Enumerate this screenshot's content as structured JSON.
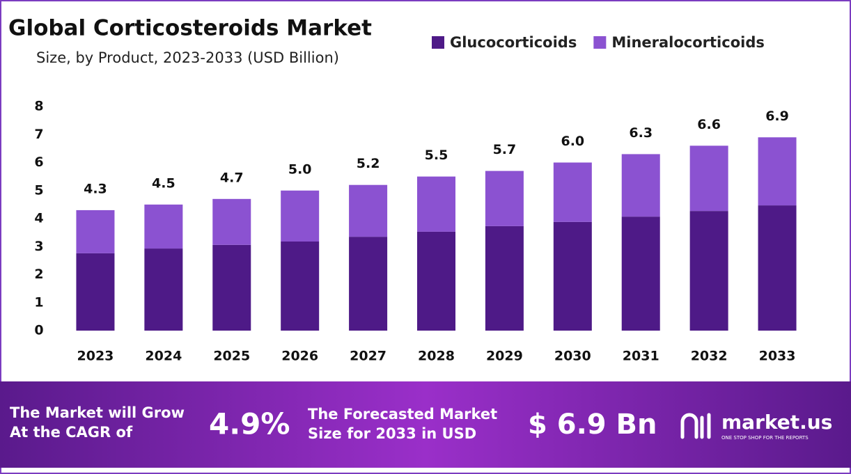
{
  "chart_data": {
    "type": "stacked_bar",
    "title": "Global Corticosteroids Market",
    "subtitle": "Size, by Product, 2023-2033 (USD Billion)",
    "categories": [
      "2023",
      "2024",
      "2025",
      "2026",
      "2027",
      "2028",
      "2029",
      "2030",
      "2031",
      "2032",
      "2033"
    ],
    "series": [
      {
        "name": "Glucocorticoids",
        "color": "#4e1a87",
        "values": [
          2.76,
          2.93,
          3.06,
          3.18,
          3.35,
          3.53,
          3.73,
          3.88,
          4.07,
          4.27,
          4.47
        ]
      },
      {
        "name": "Mineralocorticoids",
        "color": "#8b52d1",
        "values": [
          1.54,
          1.57,
          1.64,
          1.82,
          1.85,
          1.97,
          1.97,
          2.12,
          2.23,
          2.33,
          2.43
        ]
      }
    ],
    "totals": [
      4.3,
      4.5,
      4.7,
      5.0,
      5.2,
      5.5,
      5.7,
      6.0,
      6.3,
      6.6,
      6.9
    ],
    "total_labels": [
      "4.3",
      "4.5",
      "4.7",
      "5.0",
      "5.2",
      "5.5",
      "5.7",
      "6.0",
      "6.3",
      "6.6",
      "6.9"
    ],
    "ylim": [
      0,
      8
    ],
    "yticks": [
      0,
      1,
      2,
      3,
      4,
      5,
      6,
      7,
      8
    ],
    "grid": false,
    "legend": "top-right"
  },
  "footer": {
    "cagr_text": "The Market will Grow At the CAGR of",
    "cagr": "4.9%",
    "forecast_text": "The Forecasted Market Size for 2033 in USD",
    "forecast": "$ 6.9 Bn",
    "brand": "market.us",
    "tagline": "ONE STOP SHOP FOR THE REPORTS"
  }
}
